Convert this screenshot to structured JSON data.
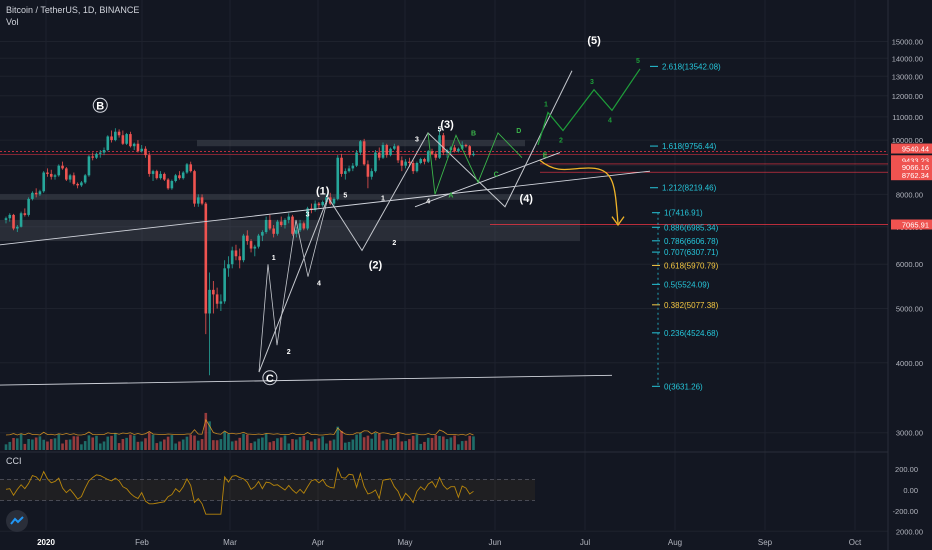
{
  "header": {
    "symbol": "Bitcoin / TetherUS, 1D, BINANCE",
    "vol_label": "Vol",
    "cci_label": "CCI"
  },
  "colors": {
    "bg": "#131722",
    "up": "#26a69a",
    "down": "#ef5350",
    "fib": "#26c6da",
    "fib_gold": "#f5c842",
    "green_wave": "#1e9e3a",
    "yellow_arrow": "#f0b429",
    "white_line": "#d1d4dc",
    "red_line": "#f23645"
  },
  "chart_data": {
    "type": "candlestick",
    "symbol": "BTCUSDT",
    "interval": "1D",
    "exchange": "BINANCE",
    "price_axis": {
      "ticks": [
        "15000.00",
        "14000.00",
        "13000.00",
        "12000.00",
        "11000.00",
        "10000.00",
        "9000.00",
        "8000.00",
        "7000.00",
        "6000.00",
        "5000.00",
        "4000.00",
        "3000.00",
        "2000.00"
      ]
    },
    "time_axis": {
      "ticks": [
        "2020",
        "Feb",
        "Mar",
        "Apr",
        "May",
        "Jun",
        "Jul",
        "Aug",
        "Sep",
        "Oct"
      ]
    },
    "cci_axis": {
      "ticks": [
        "200.00",
        "0.00",
        "-200.00"
      ]
    },
    "price_labels": [
      {
        "value": "9540.44",
        "color": "#ef5350"
      },
      {
        "value": "9433.23",
        "color": "#ef5350"
      },
      {
        "value": "09:11:15",
        "color": "#ef5350"
      },
      {
        "value": "9066.16",
        "color": "#ef5350"
      },
      {
        "value": "8762.34",
        "color": "#ef5350"
      },
      {
        "value": "7065.91",
        "color": "#ef5350"
      }
    ],
    "fib_levels": [
      {
        "label": "2.618(13542.08)",
        "price": 13542.08,
        "color": "#26c6da"
      },
      {
        "label": "1.618(9756.44)",
        "price": 9756.44,
        "color": "#26c6da"
      },
      {
        "label": "1.212(8219.46)",
        "price": 8219.46,
        "color": "#26c6da"
      },
      {
        "label": "1(7416.91)",
        "price": 7416.91,
        "color": "#26c6da"
      },
      {
        "label": "0.886(6985.34)",
        "price": 6985.34,
        "color": "#26c6da"
      },
      {
        "label": "0.786(6606.78)",
        "price": 6606.78,
        "color": "#26c6da"
      },
      {
        "label": "0.707(6307.71)",
        "price": 6307.71,
        "color": "#26c6da"
      },
      {
        "label": "0.618(5970.79)",
        "price": 5970.79,
        "color": "#f5c842"
      },
      {
        "label": "0.5(5524.09)",
        "price": 5524.09,
        "color": "#26c6da"
      },
      {
        "label": "0.382(5077.38)",
        "price": 5077.38,
        "color": "#f5c842"
      },
      {
        "label": "0.236(4524.68)",
        "price": 4524.68,
        "color": "#26c6da"
      },
      {
        "label": "0(3631.26)",
        "price": 3631.26,
        "color": "#26c6da"
      }
    ],
    "wave_labels": [
      {
        "text": "B",
        "price": 11350,
        "t": 25,
        "circled": true
      },
      {
        "text": "C",
        "price": 3700,
        "t": 70,
        "circled": true
      },
      {
        "text": "(1)",
        "price": 8000,
        "t": 84
      },
      {
        "text": "(2)",
        "price": 5900,
        "t": 98
      },
      {
        "text": "(3)",
        "price": 10500,
        "t": 117
      },
      {
        "text": "(4)",
        "price": 7750,
        "t": 138
      },
      {
        "text": "(5)",
        "price": 14850,
        "t": 156
      },
      {
        "text": "1",
        "price": 6100,
        "t": 71,
        "small": true
      },
      {
        "text": "2",
        "price": 4150,
        "t": 75,
        "small": true
      },
      {
        "text": "3",
        "price": 7300,
        "t": 80,
        "small": true
      },
      {
        "text": "4",
        "price": 5500,
        "t": 83,
        "small": true
      },
      {
        "text": "5",
        "price": 7900,
        "t": 90,
        "small": true
      },
      {
        "text": "1",
        "price": 7800,
        "t": 100,
        "small": true
      },
      {
        "text": "2",
        "price": 6500,
        "t": 103,
        "small": true
      },
      {
        "text": "3",
        "price": 9950,
        "t": 109,
        "small": true
      },
      {
        "text": "4",
        "price": 7700,
        "t": 112,
        "small": true
      },
      {
        "text": "5",
        "price": 10350,
        "t": 115,
        "small": true
      }
    ],
    "abcde_labels": [
      {
        "text": "A",
        "price": 7900,
        "t": 118
      },
      {
        "text": "B",
        "price": 10200,
        "t": 124
      },
      {
        "text": "C",
        "price": 8600,
        "t": 130
      },
      {
        "text": "D",
        "price": 10300,
        "t": 136
      },
      {
        "text": "E",
        "price": 9300,
        "t": 143
      }
    ],
    "green_wave_labels": [
      "1",
      "2",
      "3",
      "4",
      "5"
    ],
    "ohlc": [
      [
        7200,
        7300,
        7100,
        7250
      ],
      [
        7250,
        7400,
        7150,
        7350
      ],
      [
        7350,
        7380,
        6900,
        6950
      ],
      [
        6950,
        7050,
        6850,
        7000
      ],
      [
        7000,
        7450,
        6980,
        7400
      ],
      [
        7400,
        7550,
        7300,
        7350
      ],
      [
        7350,
        7900,
        7300,
        7850
      ],
      [
        7850,
        8100,
        7800,
        8050
      ],
      [
        8050,
        8200,
        7900,
        8000
      ],
      [
        8000,
        8150,
        7950,
        8100
      ],
      [
        8100,
        8800,
        8050,
        8750
      ],
      [
        8750,
        8900,
        8600,
        8700
      ],
      [
        8700,
        8850,
        8500,
        8600
      ],
      [
        8600,
        8700,
        8500,
        8650
      ],
      [
        8650,
        9050,
        8600,
        9000
      ],
      [
        9000,
        9150,
        8850,
        8900
      ],
      [
        8900,
        8950,
        8450,
        8500
      ],
      [
        8500,
        8700,
        8400,
        8650
      ],
      [
        8650,
        8750,
        8300,
        8350
      ],
      [
        8350,
        8400,
        8200,
        8300
      ],
      [
        8300,
        8450,
        8250,
        8400
      ],
      [
        8400,
        8700,
        8350,
        8650
      ],
      [
        8650,
        9400,
        8600,
        9350
      ],
      [
        9350,
        9500,
        9200,
        9300
      ],
      [
        9300,
        9500,
        9250,
        9450
      ],
      [
        9450,
        9600,
        9300,
        9500
      ],
      [
        9500,
        9700,
        9400,
        9600
      ],
      [
        9600,
        10200,
        9550,
        10150
      ],
      [
        10150,
        10400,
        9900,
        10000
      ],
      [
        10000,
        10500,
        9950,
        10350
      ],
      [
        10350,
        10450,
        10100,
        10200
      ],
      [
        10200,
        10400,
        9800,
        9850
      ],
      [
        9850,
        10300,
        9800,
        10250
      ],
      [
        10250,
        10350,
        9700,
        9750
      ],
      [
        9750,
        9900,
        9600,
        9850
      ],
      [
        9850,
        10000,
        9500,
        9550
      ],
      [
        9550,
        9800,
        9500,
        9650
      ],
      [
        9650,
        9750,
        9300,
        9400
      ],
      [
        9400,
        9500,
        8600,
        8700
      ],
      [
        8700,
        8850,
        8450,
        8800
      ],
      [
        8800,
        8850,
        8500,
        8550
      ],
      [
        8550,
        8800,
        8500,
        8700
      ],
      [
        8700,
        8750,
        8450,
        8500
      ],
      [
        8500,
        8550,
        8150,
        8200
      ],
      [
        8200,
        8500,
        8150,
        8450
      ],
      [
        8450,
        8700,
        8400,
        8650
      ],
      [
        8650,
        8800,
        8500,
        8550
      ],
      [
        8550,
        8800,
        8500,
        8750
      ],
      [
        8750,
        9100,
        8700,
        9050
      ],
      [
        9050,
        9150,
        8750,
        8800
      ],
      [
        8800,
        8850,
        7600,
        7700
      ],
      [
        7700,
        8000,
        7600,
        7900
      ],
      [
        7900,
        8000,
        7650,
        7700
      ],
      [
        7700,
        7750,
        4500,
        4900
      ],
      [
        4900,
        5800,
        3800,
        5400
      ],
      [
        5400,
        5600,
        4900,
        5300
      ],
      [
        5300,
        5450,
        5000,
        5100
      ],
      [
        5100,
        5300,
        4950,
        5150
      ],
      [
        5150,
        6100,
        5100,
        5900
      ],
      [
        5900,
        6200,
        5700,
        6000
      ],
      [
        6000,
        6450,
        5900,
        6350
      ],
      [
        6350,
        6500,
        6100,
        6200
      ],
      [
        6200,
        6400,
        5900,
        6100
      ],
      [
        6100,
        6800,
        6050,
        6750
      ],
      [
        6750,
        6900,
        6500,
        6600
      ],
      [
        6600,
        6650,
        6300,
        6400
      ],
      [
        6400,
        6500,
        6200,
        6450
      ],
      [
        6450,
        6800,
        6400,
        6750
      ],
      [
        6750,
        6900,
        6600,
        6850
      ],
      [
        6850,
        7300,
        6800,
        7200
      ],
      [
        7200,
        7350,
        6900,
        6950
      ],
      [
        6950,
        7050,
        6700,
        6800
      ],
      [
        6800,
        7200,
        6750,
        7150
      ],
      [
        7150,
        7300,
        7000,
        7050
      ],
      [
        7050,
        7250,
        6950,
        7200
      ],
      [
        7200,
        7400,
        7100,
        7300
      ],
      [
        7300,
        7350,
        6750,
        6800
      ],
      [
        6800,
        7000,
        6700,
        6900
      ],
      [
        6900,
        7200,
        6850,
        7100
      ],
      [
        7100,
        7150,
        6900,
        6950
      ],
      [
        6950,
        7600,
        6900,
        7550
      ],
      [
        7550,
        7700,
        7400,
        7500
      ],
      [
        7500,
        7800,
        7450,
        7700
      ],
      [
        7700,
        7750,
        7550,
        7650
      ],
      [
        7650,
        7800,
        7600,
        7750
      ],
      [
        7750,
        8000,
        7700,
        7900
      ],
      [
        7900,
        8050,
        7650,
        7700
      ],
      [
        7700,
        7900,
        7600,
        7850
      ],
      [
        7850,
        9400,
        7800,
        9300
      ],
      [
        9300,
        9450,
        8600,
        8700
      ],
      [
        8700,
        8900,
        8500,
        8800
      ],
      [
        8800,
        9000,
        8750,
        8900
      ],
      [
        8900,
        9100,
        8800,
        9000
      ],
      [
        9000,
        9600,
        8950,
        9500
      ],
      [
        9500,
        10000,
        9400,
        9950
      ],
      [
        9950,
        10050,
        9000,
        9050
      ],
      [
        9050,
        9200,
        8200,
        8600
      ],
      [
        8600,
        8900,
        8500,
        8800
      ],
      [
        8800,
        9600,
        8750,
        9500
      ],
      [
        9500,
        9700,
        9200,
        9300
      ],
      [
        9300,
        9900,
        9250,
        9800
      ],
      [
        9800,
        9850,
        9300,
        9400
      ],
      [
        9400,
        9700,
        9350,
        9650
      ],
      [
        9650,
        9850,
        9600,
        9750
      ],
      [
        9750,
        9800,
        9100,
        9200
      ],
      [
        9200,
        9350,
        8800,
        9000
      ],
      [
        9000,
        9250,
        8900,
        9150
      ],
      [
        9150,
        9300,
        8950,
        9100
      ],
      [
        9100,
        9200,
        8700,
        8800
      ],
      [
        8800,
        9150,
        8750,
        9100
      ],
      [
        9100,
        9300,
        9050,
        9250
      ],
      [
        9250,
        9300,
        9050,
        9150
      ],
      [
        9150,
        9600,
        9100,
        9550
      ],
      [
        9550,
        9650,
        9400,
        9450
      ],
      [
        9450,
        9550,
        9200,
        9300
      ],
      [
        9300,
        10450,
        9250,
        10200
      ],
      [
        10200,
        10300,
        9400,
        9500
      ],
      [
        9500,
        9650,
        9300,
        9600
      ],
      [
        9600,
        9750,
        9450,
        9700
      ],
      [
        9700,
        9800,
        9500,
        9550
      ],
      [
        9550,
        9700,
        9500,
        9650
      ],
      [
        9650,
        9950,
        9600,
        9800
      ],
      [
        9800,
        9850,
        9700,
        9750
      ],
      [
        9750,
        9800,
        9300,
        9400
      ],
      [
        9400,
        9550,
        9350,
        9450
      ]
    ]
  }
}
